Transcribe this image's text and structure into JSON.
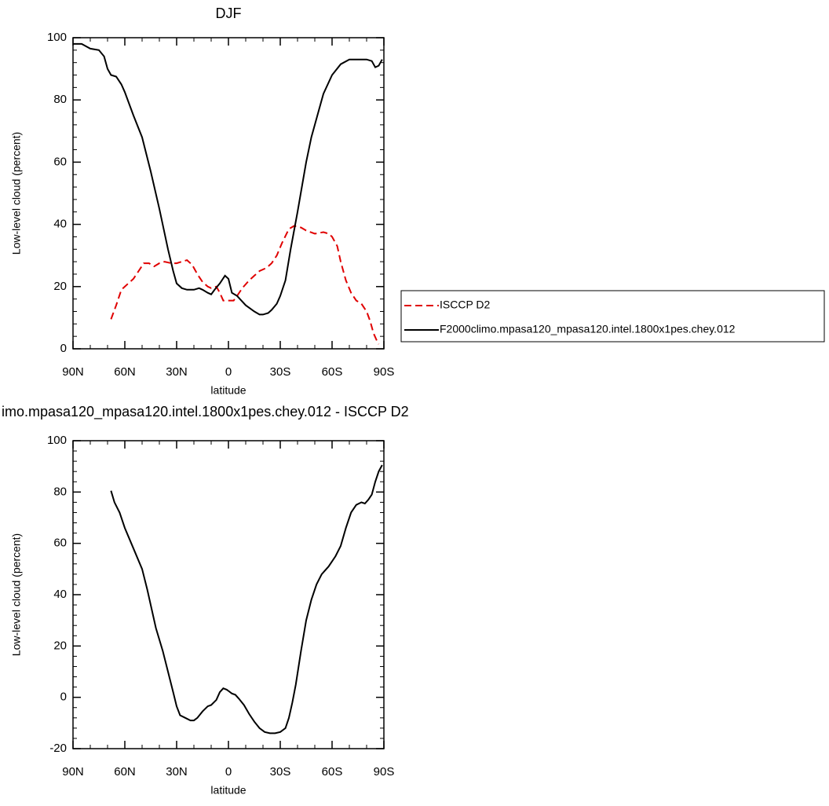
{
  "chart_data": [
    {
      "type": "line",
      "title": "DJF",
      "xlabel": "latitude",
      "ylabel": "Low-level cloud (percent)",
      "xlim": [
        90,
        -90
      ],
      "ylim": [
        0,
        100
      ],
      "xticks": [
        {
          "value": 90,
          "label": "90N"
        },
        {
          "value": 60,
          "label": "60N"
        },
        {
          "value": 30,
          "label": "30N"
        },
        0,
        {
          "value": -30,
          "label": "30S"
        },
        {
          "value": -60,
          "label": "60S"
        },
        {
          "value": -90,
          "label": "90S"
        }
      ],
      "yticks": [
        0,
        20,
        40,
        60,
        80,
        100
      ],
      "series": [
        {
          "name": "ISCCP D2",
          "color": "#e00000",
          "dash": true,
          "x": [
            68,
            65,
            62,
            58,
            55,
            52,
            49,
            46,
            43,
            40,
            37,
            33,
            30,
            27,
            24,
            21,
            18,
            15,
            12,
            10,
            7,
            5,
            3,
            0,
            -3,
            -5,
            -8,
            -12,
            -15,
            -18,
            -22,
            -25,
            -28,
            -31,
            -35,
            -38,
            -42,
            -45,
            -50,
            -55,
            -58,
            -60,
            -63,
            -65,
            -68,
            -71,
            -74,
            -77,
            -80,
            -82,
            -84,
            -86,
            -87
          ],
          "values": [
            9.5,
            14,
            19,
            21,
            22.5,
            25,
            27.5,
            27.5,
            26.5,
            27.5,
            28,
            27.5,
            27.5,
            28,
            28.5,
            27,
            24,
            21.5,
            20,
            19.5,
            20,
            18,
            15.5,
            15.5,
            15.5,
            17,
            19.5,
            22,
            23.5,
            25,
            26,
            27.5,
            30,
            34,
            38.5,
            39.5,
            39,
            38,
            37,
            37.5,
            37,
            36,
            33,
            28,
            22,
            18,
            15.5,
            14.5,
            12,
            9,
            5,
            2.5,
            1.5
          ]
        },
        {
          "name": "F2000climo.mpasa120_mpasa120.intel.1800x1pes.chey.012",
          "color": "#000000",
          "dash": false,
          "x": [
            90,
            85,
            80,
            75,
            72,
            70,
            68,
            65,
            62,
            60,
            55,
            50,
            45,
            40,
            35,
            32,
            30,
            27,
            24,
            20,
            17,
            15,
            12,
            10,
            8,
            5,
            2,
            0,
            -2,
            -5,
            -10,
            -15,
            -18,
            -20,
            -23,
            -25,
            -28,
            -30,
            -33,
            -36,
            -40,
            -45,
            -48,
            -52,
            -55,
            -60,
            -65,
            -70,
            -75,
            -80,
            -83,
            -85,
            -87,
            -89
          ],
          "values": [
            98,
            98,
            96.5,
            96,
            94,
            90,
            88,
            87.5,
            85,
            82.5,
            75,
            68,
            57,
            45,
            32,
            25,
            21,
            19.5,
            19,
            19,
            19.5,
            19,
            18,
            17.5,
            19,
            21,
            23.5,
            22.5,
            18,
            17,
            14,
            12,
            11,
            11,
            11.5,
            12.5,
            14.5,
            17,
            22,
            32,
            44,
            60,
            68,
            76,
            82,
            88,
            91.5,
            93,
            93,
            93,
            92.5,
            90.5,
            91,
            93
          ]
        }
      ]
    },
    {
      "type": "line",
      "title": "imo.mpasa120_mpasa120.intel.1800x1pes.chey.012 - ISCCP D2",
      "xlabel": "latitude",
      "ylabel": "Low-level cloud (percent)",
      "xlim": [
        90,
        -90
      ],
      "ylim": [
        -20,
        100
      ],
      "xticks": [
        {
          "value": 90,
          "label": "90N"
        },
        {
          "value": 60,
          "label": "60N"
        },
        {
          "value": 30,
          "label": "30N"
        },
        0,
        {
          "value": -30,
          "label": "30S"
        },
        {
          "value": -60,
          "label": "60S"
        },
        {
          "value": -90,
          "label": "90S"
        }
      ],
      "yticks": [
        -20,
        0,
        20,
        40,
        60,
        80,
        100
      ],
      "color": "#000000",
      "x": [
        68,
        66,
        63,
        60,
        55,
        50,
        47,
        45,
        42,
        38,
        35,
        32,
        30,
        28,
        25,
        22,
        20,
        18,
        15,
        12,
        10,
        7,
        5,
        3,
        1,
        0,
        -2,
        -4,
        -6,
        -9,
        -12,
        -15,
        -18,
        -21,
        -24,
        -27,
        -30,
        -33,
        -35,
        -37,
        -39,
        -42,
        -45,
        -48,
        -51,
        -54,
        -58,
        -62,
        -65,
        -68,
        -71,
        -74,
        -77,
        -79,
        -81,
        -83,
        -85,
        -87,
        -89
      ],
      "values": [
        80.5,
        76,
        72,
        66,
        58,
        50,
        42,
        36,
        27,
        18,
        10,
        2,
        -3.5,
        -7,
        -8,
        -9,
        -9,
        -8,
        -5.5,
        -3.5,
        -3,
        -1,
        2,
        3.5,
        3,
        2.5,
        1.5,
        1,
        -0.5,
        -3,
        -6.5,
        -9.5,
        -12,
        -13.5,
        -14,
        -14,
        -13.5,
        -12,
        -8,
        -2,
        5,
        18,
        30,
        38,
        44,
        48,
        51,
        55,
        59,
        66,
        72,
        75,
        76,
        75.5,
        77,
        79,
        84,
        88,
        90.5
      ]
    }
  ]
}
